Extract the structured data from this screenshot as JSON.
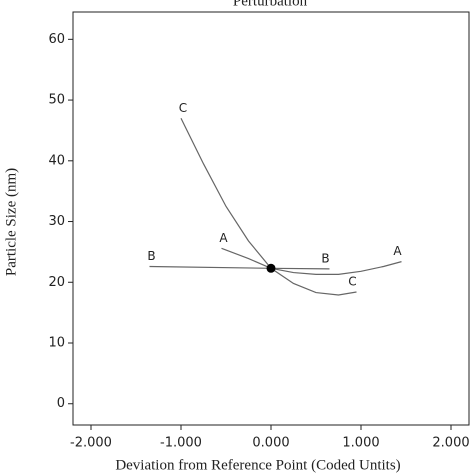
{
  "chart_data": {
    "type": "line",
    "title": "Perturbation",
    "x_label": "Deviation from Reference Point (Coded Untits)",
    "y_label": "Particle Size (nm)",
    "xlim": [
      -2.2,
      2.2
    ],
    "ylim": [
      -3.5,
      64.5
    ],
    "xticks": [
      {
        "value": -2,
        "label": "-2.000"
      },
      {
        "value": -1,
        "label": "-1.000"
      },
      {
        "value": 0,
        "label": "0.000"
      },
      {
        "value": 1,
        "label": "1.000"
      },
      {
        "value": 2,
        "label": "2.000"
      }
    ],
    "yticks": [
      0,
      10,
      20,
      30,
      40,
      50,
      60
    ],
    "series": [
      {
        "name": "A",
        "color": "#666666",
        "x": [
          -0.55,
          -0.25,
          0,
          0.25,
          0.5,
          0.75,
          1.0,
          1.25,
          1.45
        ],
        "values": [
          25.6,
          23.9,
          22.3,
          21.6,
          21.3,
          21.3,
          21.8,
          22.6,
          23.4
        ]
      },
      {
        "name": "B",
        "color": "#666666",
        "x": [
          -1.35,
          0,
          0.65
        ],
        "values": [
          22.6,
          22.3,
          22.2
        ]
      },
      {
        "name": "C",
        "color": "#666666",
        "x": [
          -1.0,
          -0.75,
          -0.5,
          -0.25,
          0,
          0.25,
          0.5,
          0.75,
          0.95
        ],
        "values": [
          47,
          39.5,
          32.5,
          26.8,
          22.3,
          19.8,
          18.3,
          17.9,
          18.4
        ]
      }
    ],
    "reference_point": {
      "x": 0,
      "y": 22.3
    }
  }
}
